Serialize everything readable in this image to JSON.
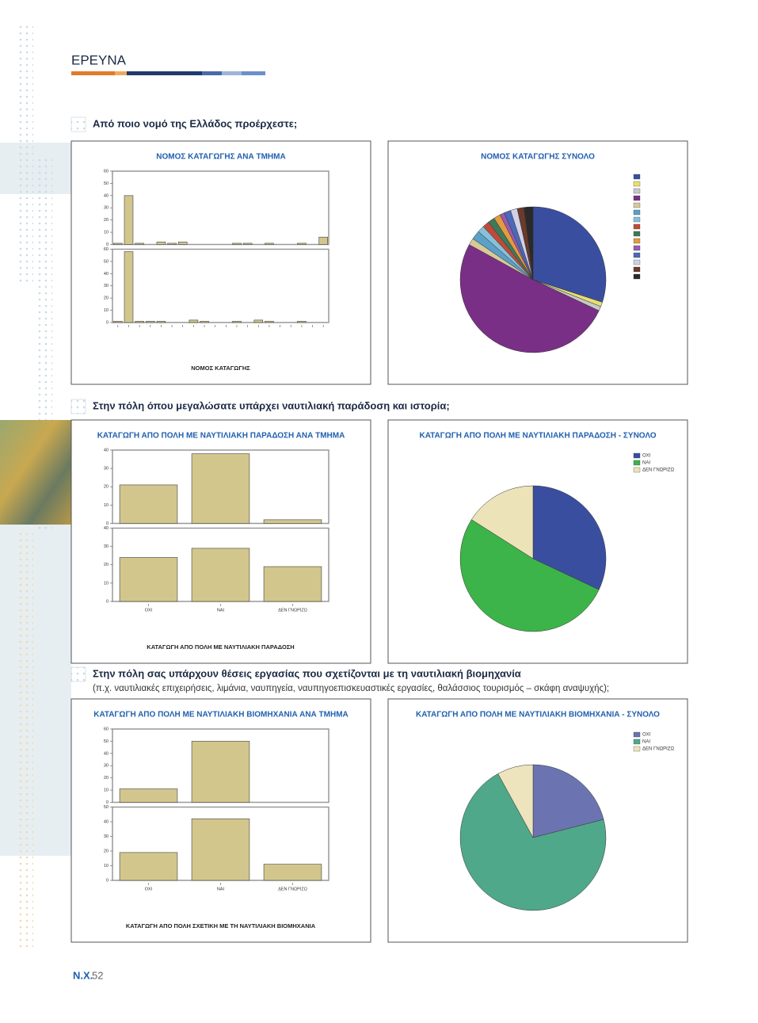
{
  "header": {
    "section": "ΕΡΕΥΝΑ"
  },
  "sections": [
    {
      "question": "Από ποιο νομό της Ελλάδος προέρχεστε;"
    },
    {
      "question": "Στην πόλη όπου μεγαλώσατε υπάρχει ναυτιλιακή παράδοση και ιστορία;"
    },
    {
      "question": "Στην πόλη σας υπάρχουν θέσεις εργασίας που σχετίζονται με τη ναυτιλιακή βιομηχανία",
      "subtitle": "(π.χ. ναυτιλιακές επιχειρήσεις, λιμάνια, ναυπηγεία, ναυπηγοεπισκευαστικές εργασίες, θαλάσσιος τουρισμός – σκάφη αναψυχής);"
    }
  ],
  "chart_data": [
    {
      "type": "bar",
      "title": "ΝΟΜΟΣ ΚΑΤΑΓΩΓΗΣ ΑΝΑ ΤΜΗΜΑ",
      "xlabel": "ΝΟΜΟΣ ΚΑΤΑΓΩΓΗΣ",
      "color": "#d2c68c",
      "categories": [
        null,
        null,
        null,
        null,
        null,
        null,
        null,
        null,
        null,
        null,
        null,
        null,
        null,
        null,
        null,
        null,
        null,
        null,
        null,
        null
      ],
      "panels": [
        {
          "values": [
            1,
            40,
            1,
            0,
            2,
            1,
            2,
            0,
            0,
            0,
            0,
            1,
            1,
            0,
            1,
            0,
            0,
            1,
            0,
            6
          ],
          "ylim": [
            0,
            60
          ],
          "yticks": [
            0,
            10,
            20,
            30,
            40,
            50,
            60
          ]
        },
        {
          "values": [
            1,
            58,
            1,
            1,
            1,
            0,
            0,
            2,
            1,
            0,
            0,
            1,
            0,
            2,
            1,
            0,
            0,
            1,
            0,
            0
          ],
          "ylim": [
            0,
            60
          ],
          "yticks": [
            0,
            10,
            20,
            30,
            40,
            50,
            60
          ]
        }
      ]
    },
    {
      "type": "pie",
      "title": "ΝΟΜΟΣ ΚΑΤΑΓΩΓΗΣ ΣΥΝΟΛΟ",
      "categories": [
        null,
        null,
        null,
        null,
        null,
        null,
        null,
        null,
        null,
        null,
        null,
        null,
        null,
        null,
        null
      ],
      "values": [
        30,
        1,
        1,
        51,
        1.5,
        2,
        1.5,
        1.5,
        1.5,
        1.5,
        1,
        1.5,
        1.5,
        1.5,
        2
      ],
      "colors": [
        "#3a4ea0",
        "#e8df70",
        "#c8c8c8",
        "#7a2f86",
        "#d8c89a",
        "#5aa0c8",
        "#88c0d8",
        "#c04a3a",
        "#3c7a5a",
        "#e49a40",
        "#9a5ab0",
        "#4a6ab8",
        "#d0d0e8",
        "#6a3a2a",
        "#2a2a2a"
      ]
    },
    {
      "type": "bar",
      "title": "ΚΑΤΑΓΩΓΗ ΑΠΟ ΠΟΛΗ ΜΕ ΝΑΥΤΙΛΙΑΚΗ ΠΑΡΑΔΟΣΗ ΑΝΑ ΤΜΗΜΑ",
      "xlabel": "ΚΑΤΑΓΩΓΗ ΑΠΟ ΠΟΛΗ ΜΕ ΝΑΥΤΙΛΙΑΚΗ ΠΑΡΑΔΟΣΗ",
      "color": "#d2c68c",
      "categories": [
        "ΟΧΙ",
        "ΝΑΙ",
        "ΔΕΝ ΓΝΩΡΙΖΩ"
      ],
      "panels": [
        {
          "values": [
            21,
            38,
            2
          ],
          "ylim": [
            0,
            40
          ],
          "yticks": [
            0,
            10,
            20,
            30,
            40
          ]
        },
        {
          "values": [
            24,
            29,
            19
          ],
          "ylim": [
            0,
            40
          ],
          "yticks": [
            0,
            10,
            20,
            30,
            40
          ]
        }
      ]
    },
    {
      "type": "pie",
      "title": "ΚΑΤΑΓΩΓΗ ΑΠΟ ΠΟΛΗ ΜΕ ΝΑΥΤΙΛΙΑΚΗ ΠΑΡΑΔΟΣΗ - ΣΥΝΟΛΟ",
      "categories": [
        "ΟΧΙ",
        "ΝΑΙ",
        "ΔΕΝ ΓΝΩΡΙΖΩ"
      ],
      "values": [
        32,
        52,
        16
      ],
      "colors": [
        "#3a4ea0",
        "#3cb44a",
        "#ece3b8"
      ]
    },
    {
      "type": "bar",
      "title": "ΚΑΤΑΓΩΓΗ ΑΠΟ ΠΟΛΗ ΜΕ ΝΑΥΤΙΛΙΑΚΗ ΒΙΟΜΗΧΑΝΙΑ ΑΝΑ ΤΜΗΜΑ",
      "xlabel": "ΚΑΤΑΓΩΓΗ ΑΠΟ ΠΟΛΗ ΣΧΕΤΙΚΗ ΜΕ ΤΗ ΝΑΥΤΙΛΙΑΚΗ ΒΙΟΜΗΧΑΝΙΑ",
      "color": "#d2c68c",
      "categories": [
        "ΟΧΙ",
        "ΝΑΙ",
        "ΔΕΝ ΓΝΩΡΙΖΩ"
      ],
      "panels": [
        {
          "values": [
            11,
            50,
            null
          ],
          "ylim": [
            0,
            60
          ],
          "yticks": [
            0,
            10,
            20,
            30,
            40,
            50,
            60
          ]
        },
        {
          "values": [
            19,
            42,
            11
          ],
          "ylim": [
            0,
            50
          ],
          "yticks": [
            0,
            10,
            20,
            30,
            40,
            50
          ]
        }
      ]
    },
    {
      "type": "pie",
      "title": "ΚΑΤΑΓΩΓΗ ΑΠΟ ΠΟΛΗ ΜΕ ΝΑΥΤΙΛΙΑΚΗ ΒΙΟΜΗΧΑΝΙΑ - ΣΥΝΟΛΟ",
      "categories": [
        "ΟΧΙ",
        "ΝΑΙ",
        "ΔΕΝ ΓΝΩΡΙΖΩ"
      ],
      "values": [
        21,
        71,
        8
      ],
      "colors": [
        "#6b74b0",
        "#4fa88a",
        "#ede3bd"
      ]
    }
  ],
  "footer": {
    "label": "Ν.Χ.",
    "page": 52
  }
}
